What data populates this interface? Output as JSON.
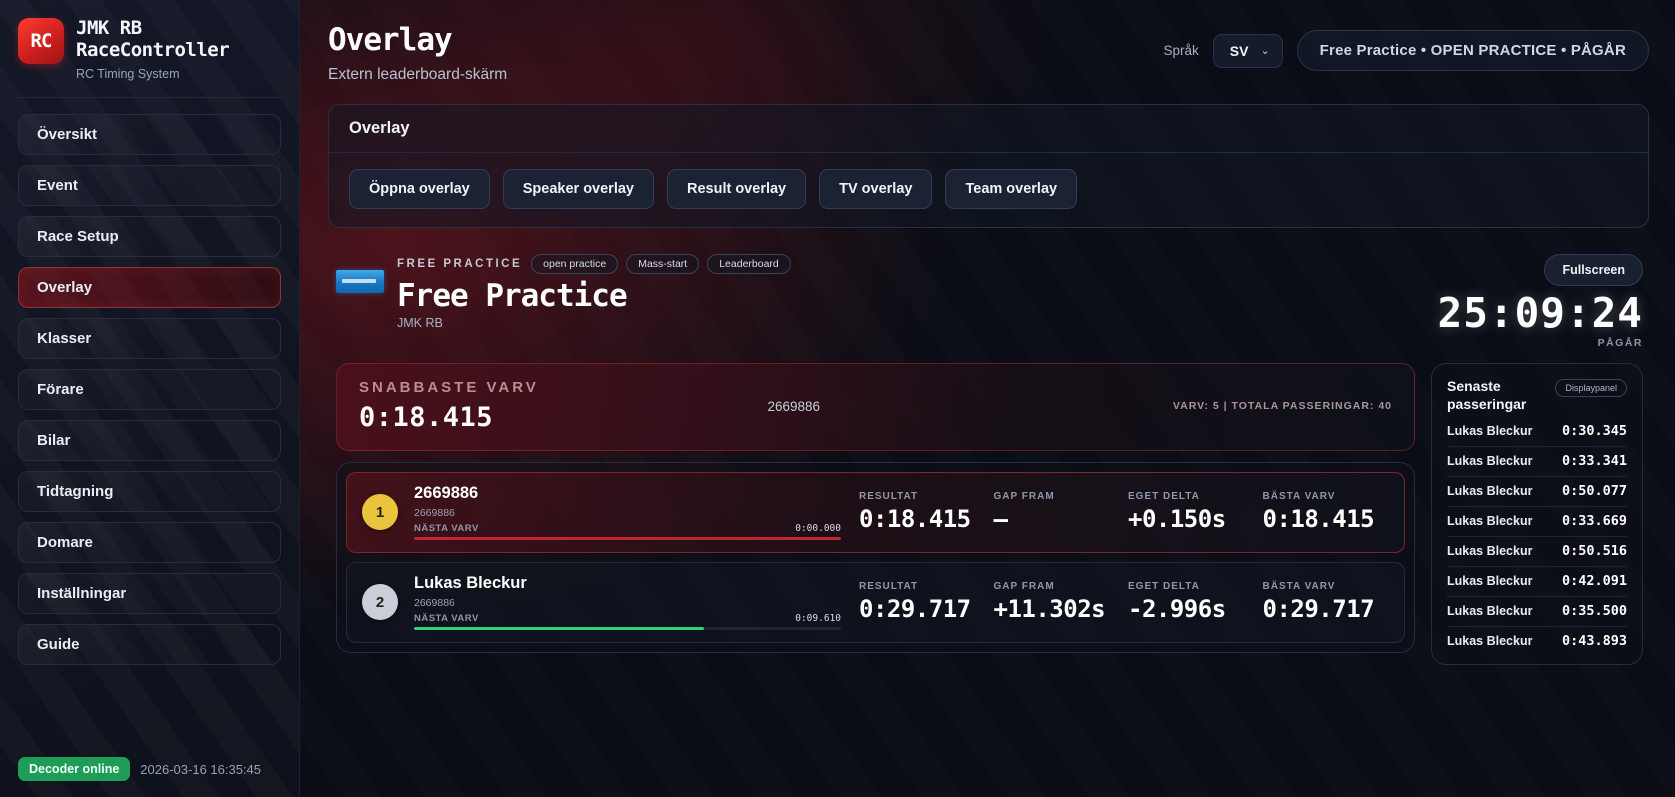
{
  "app": {
    "logo_text": "RC",
    "title": "JMK RB RaceController",
    "subtitle": "RC Timing System"
  },
  "sidebar": {
    "items": [
      {
        "label": "Översikt",
        "active": false
      },
      {
        "label": "Event",
        "active": false
      },
      {
        "label": "Race Setup",
        "active": false
      },
      {
        "label": "Overlay",
        "active": true
      },
      {
        "label": "Klasser",
        "active": false
      },
      {
        "label": "Förare",
        "active": false
      },
      {
        "label": "Bilar",
        "active": false
      },
      {
        "label": "Tidtagning",
        "active": false
      },
      {
        "label": "Domare",
        "active": false
      },
      {
        "label": "Inställningar",
        "active": false
      },
      {
        "label": "Guide",
        "active": false
      }
    ],
    "footer": {
      "decoder_status": "Decoder online",
      "timestamp": "2026-03-16 16:35:45"
    }
  },
  "header": {
    "title": "Overlay",
    "subtitle": "Extern leaderboard-skärm",
    "language_label": "Språk",
    "language_value": "SV",
    "chevron": "⌄",
    "session_badge": "Free Practice • OPEN PRACTICE • PÅGÅR"
  },
  "overlay_card": {
    "title": "Overlay",
    "buttons": [
      "Öppna overlay",
      "Speaker overlay",
      "Result overlay",
      "TV overlay",
      "Team overlay"
    ]
  },
  "session": {
    "eyebrow": "FREE PRACTICE",
    "badges": [
      "open practice",
      "Mass-start",
      "Leaderboard"
    ],
    "title": "Free Practice",
    "club": "JMK RB",
    "fullscreen_label": "Fullscreen",
    "timer": "25:09:24",
    "status": "PÅGÅR"
  },
  "fastest_lap": {
    "label": "SNABBASTE VARV",
    "time": "0:18.415",
    "driver": "2669886",
    "meta": "VARV: 5 | TOTALA PASSERINGAR: 40"
  },
  "leaderboard": {
    "columns": {
      "result": "RESULTAT",
      "gap": "GAP FRAM",
      "delta": "EGET DELTA",
      "best": "BÄSTA VARV"
    },
    "next_lap_label": "NÄSTA VARV",
    "rows": [
      {
        "pos": "1",
        "name": "2669886",
        "transponder": "2669886",
        "lap_progress_time": "0:00.000",
        "progress_pct": 100,
        "progress_color": "#c22430",
        "pos_color": "#e9c43c",
        "highlight": true,
        "result": "0:18.415",
        "gap": "–",
        "delta": "+0.150s",
        "best": "0:18.415"
      },
      {
        "pos": "2",
        "name": "Lukas Bleckur",
        "transponder": "2669886",
        "lap_progress_time": "0:09.610",
        "progress_pct": 68,
        "progress_color": "#35d07a",
        "pos_color": "#c9ced8",
        "highlight": false,
        "result": "0:29.717",
        "gap": "+11.302s",
        "delta": "-2.996s",
        "best": "0:29.717"
      }
    ]
  },
  "passings": {
    "title": "Senaste passeringar",
    "badge": "Displaypanel",
    "rows": [
      {
        "name": "Lukas Bleckur",
        "time": "0:30.345"
      },
      {
        "name": "Lukas Bleckur",
        "time": "0:33.341"
      },
      {
        "name": "Lukas Bleckur",
        "time": "0:50.077"
      },
      {
        "name": "Lukas Bleckur",
        "time": "0:33.669"
      },
      {
        "name": "Lukas Bleckur",
        "time": "0:50.516"
      },
      {
        "name": "Lukas Bleckur",
        "time": "0:42.091"
      },
      {
        "name": "Lukas Bleckur",
        "time": "0:35.500"
      },
      {
        "name": "Lukas Bleckur",
        "time": "0:43.893"
      }
    ]
  },
  "colors": {
    "brand_red": "#c81e1e",
    "active_nav_red": "#56141d",
    "fastest_panel_red": "#4a1019",
    "progress_red": "#c22430",
    "progress_green": "#35d07a",
    "pos1_yellow": "#e9c43c",
    "pos2_gray": "#c9ced8",
    "decoder_green": "#1f9d58",
    "event_logo_blue": "#1877c2"
  }
}
